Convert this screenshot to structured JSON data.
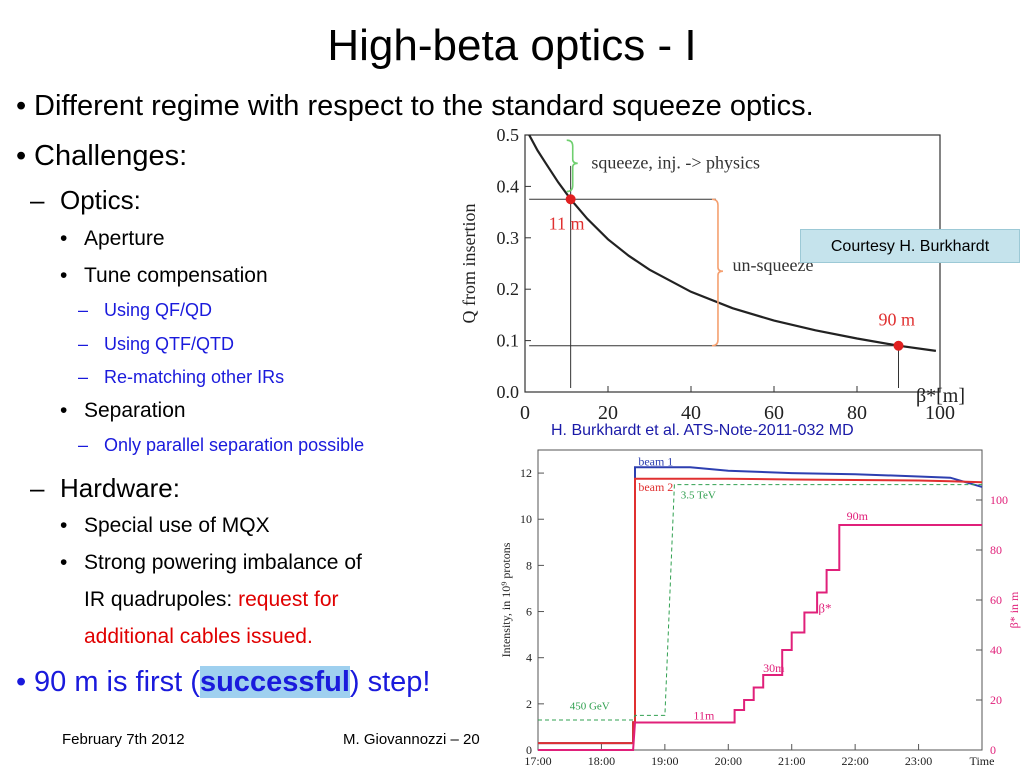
{
  "slide": {
    "title": "High-beta optics - I",
    "bullets": {
      "b1": "Different regime with respect to the standard squeeze optics.",
      "b2": "Challenges:",
      "optics": "Optics:",
      "aperture": "Aperture",
      "tune": "Tune compensation",
      "qfqd": "Using QF/QD",
      "qtf": "Using QTF/QTD",
      "rematch": "Re-matching other IRs",
      "separation": "Separation",
      "parallel": "Only parallel separation possible",
      "hardware": "Hardware:",
      "mqx": "Special use of MQX",
      "imbalance": "Strong powering imbalance of",
      "irquad": "IR quadrupoles: ",
      "request": "request for",
      "cables": "additional cables issued.",
      "final_pre": "90 m is first (",
      "final_bold": "successful",
      "final_post": ") step!"
    },
    "courtesy": "Courtesy H. Burkhardt",
    "caption": "H. Burkhardt et al. ATS-Note-2011-032 MD",
    "footer": {
      "date": "February 7th 2012",
      "author": "M. Giovannozzi – 20"
    },
    "bullet_glyph": "•",
    "dash_glyph": "–"
  },
  "chart_data": [
    {
      "type": "line",
      "ylabel": "Q from insertion",
      "xlabel": "β*[m]",
      "xlim": [
        0,
        100
      ],
      "ylim": [
        0.0,
        0.5
      ],
      "x_ticks": [
        "0",
        "20",
        "40",
        "60",
        "80",
        "100"
      ],
      "y_ticks": [
        "0.0",
        "0.1",
        "0.2",
        "0.3",
        "0.4",
        "0.5"
      ],
      "series": [
        {
          "x": [
            1,
            3,
            5,
            8,
            11,
            15,
            20,
            25,
            30,
            40,
            50,
            60,
            70,
            80,
            90,
            99
          ],
          "values": [
            0.5,
            0.47,
            0.445,
            0.408,
            0.375,
            0.337,
            0.297,
            0.265,
            0.238,
            0.195,
            0.163,
            0.139,
            0.12,
            0.104,
            0.09,
            0.08
          ]
        }
      ],
      "markers": [
        {
          "x": 11,
          "y": 0.375,
          "label": "11 m"
        },
        {
          "x": 90,
          "y": 0.09,
          "label": "90 m"
        }
      ],
      "annotations": [
        "squeeze, inj. -> physics",
        "un-squeeze"
      ],
      "colors": {
        "curve": "#222222",
        "marker": "#e02020",
        "label": "#e03030",
        "brace_squeeze": "#6fcf6f",
        "brace_unsqueeze": "#f5a070"
      }
    },
    {
      "type": "line",
      "ylabel": "Intensity,  in 10⁹ protons",
      "ylabel_right": "β* in m",
      "x_ticks": [
        "17:00",
        "18:00",
        "19:00",
        "20:00",
        "21:00",
        "22:00",
        "23:00",
        "Time"
      ],
      "xlim": [
        17.0,
        24.0
      ],
      "ylim": [
        0,
        13
      ],
      "y_ticks": [
        "0",
        "2",
        "4",
        "6",
        "8",
        "10",
        "12"
      ],
      "ylim_right": [
        0,
        120
      ],
      "y_ticks_right": [
        "0",
        "20",
        "40",
        "60",
        "80",
        "100"
      ],
      "series": [
        {
          "name": "beam 1",
          "x": [
            17.0,
            18.5,
            18.5,
            18.53,
            18.53,
            19.4,
            20.0,
            21.0,
            22.0,
            23.0,
            23.5,
            24.0
          ],
          "values": [
            0.3,
            0.3,
            1.2,
            1.2,
            12.25,
            12.25,
            12.1,
            12.0,
            11.95,
            11.85,
            11.8,
            11.4
          ]
        },
        {
          "name": "beam 2",
          "x": [
            17.0,
            18.5,
            18.5,
            18.53,
            18.53,
            19.4,
            20.0,
            21.0,
            22.0,
            23.0,
            23.5,
            24.0
          ],
          "values": [
            0.3,
            0.3,
            1.2,
            1.2,
            11.75,
            11.75,
            11.75,
            11.72,
            11.7,
            11.68,
            11.65,
            11.6
          ]
        },
        {
          "name": "β*",
          "axis": "right",
          "x": [
            17.0,
            18.5,
            18.53,
            20.1,
            20.1,
            20.25,
            20.25,
            20.4,
            20.4,
            20.55,
            20.55,
            20.7,
            20.7,
            20.85,
            20.85,
            21.0,
            21.0,
            21.2,
            21.2,
            21.4,
            21.4,
            21.55,
            21.55,
            21.75,
            21.75,
            24.0
          ],
          "values": [
            0,
            0,
            11,
            11,
            16,
            16,
            20,
            20,
            25,
            25,
            30,
            30,
            30,
            30,
            40,
            40,
            47,
            47,
            55,
            55,
            63,
            63,
            72,
            72,
            90,
            90
          ]
        },
        {
          "name": "energy",
          "x": [
            17.0,
            18.5,
            18.53,
            19.0,
            19.15,
            24.0
          ],
          "values": [
            1.3,
            1.3,
            1.5,
            1.5,
            11.5,
            11.5
          ]
        }
      ],
      "annotations": [
        "450 GeV",
        "3.5 TeV",
        "11m",
        "30m",
        "90m",
        "β*"
      ],
      "colors": {
        "beam1": "#2d3fb0",
        "beam2": "#e03030",
        "betastar": "#e0207a",
        "energy": "#30a050"
      }
    }
  ]
}
